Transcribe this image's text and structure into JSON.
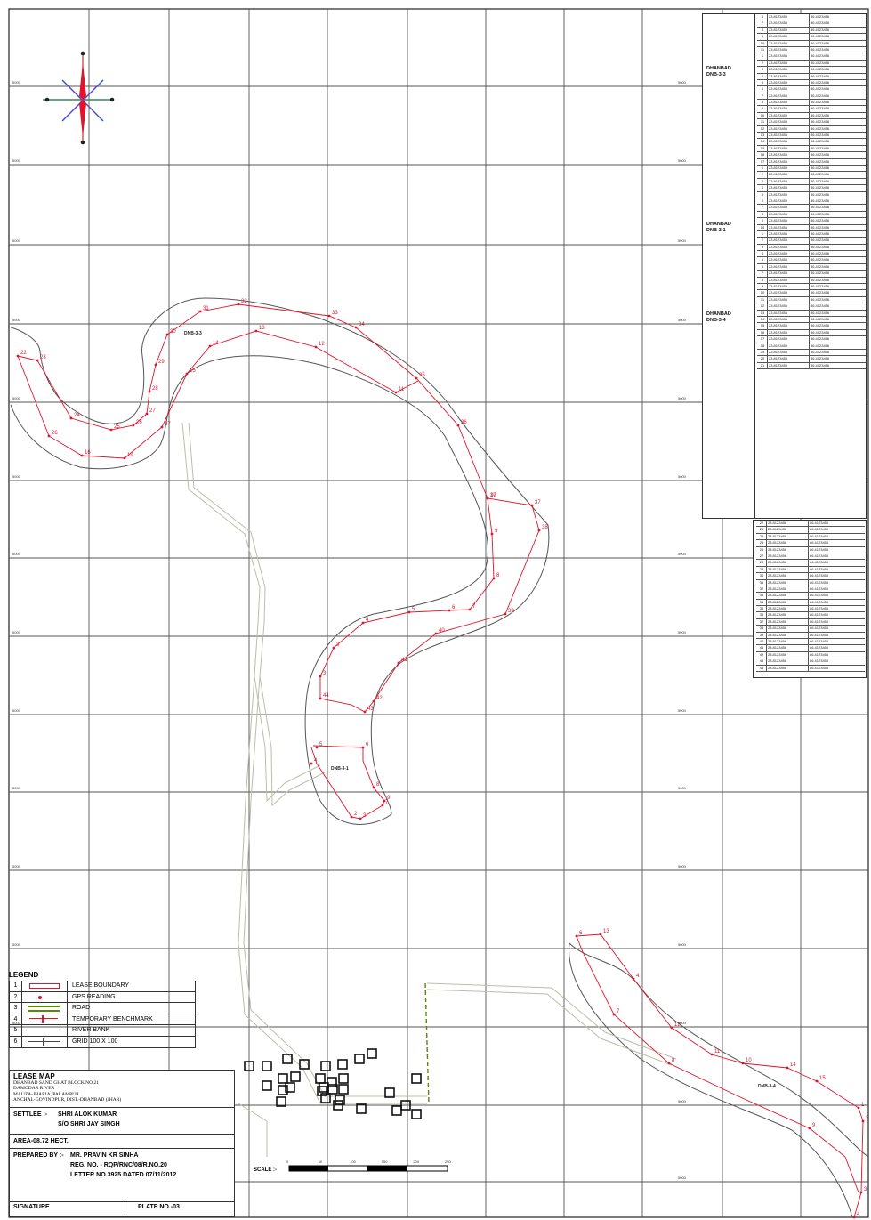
{
  "legend": {
    "title": "LEGEND",
    "items": [
      {
        "num": "1",
        "label": "LEASE BOUNDARY",
        "icon": "red-rectangle-symbol"
      },
      {
        "num": "2",
        "label": "GPS READING",
        "icon": "gps-point-symbol"
      },
      {
        "num": "3",
        "label": "ROAD",
        "icon": "green-double-line-symbol"
      },
      {
        "num": "4",
        "label": "TEMPORARY BENCHMARK",
        "icon": "benchmark-symbol"
      },
      {
        "num": "5",
        "label": "RIVER BANK",
        "icon": "grey-line-symbol"
      },
      {
        "num": "6",
        "label": "GRID 100 X 100",
        "icon": "grid-cross-symbol"
      }
    ]
  },
  "title_block": {
    "title": "LEASE MAP",
    "line1": "DHANBAD SAND GHAT BLOCK NO.21",
    "line2": "DAMODAR RIVER",
    "line3": "MAUZA-JHARIA, PALAMPUR",
    "line4": "ANCHAL-GOVINDPUR, DIST.-DHANBAD (JHAR)",
    "settlee_label": "SETTLEE :-",
    "settlee_name": "SHRI ALOK KUMAR",
    "settlee_father": "S/O SHRI JAY SINGH",
    "area": "AREA-08.72 HECT.",
    "prepared_label": "PREPARED BY :-",
    "prepared_name": "MR. PRAVIN KR SINHA",
    "reg_no": "REG. NO. - RQP/RNC/08/R.NO.20",
    "letter_no": "LETTER NO.3925 DATED 07/11/2012",
    "signature": "SIGNATURE",
    "plate": "PLATE NO.-03"
  },
  "scale": {
    "label": "SCALE :-",
    "ticks": [
      "0",
      "50",
      "100",
      "150",
      "200",
      "250"
    ]
  },
  "block_labels": [
    "DNB-3-3",
    "DNB-3-1",
    "DNB-3-4"
  ],
  "tables": {
    "group_labels": [
      {
        "line1": "DHANBAD",
        "line2": "DNB-3-3"
      },
      {
        "line1": "DHANBAD",
        "line2": "DNB-3-1"
      },
      {
        "line1": "DHANBAD",
        "line2": "DNB-3-4"
      }
    ],
    "right_numbers": [
      "6",
      "7",
      "8",
      "9",
      "10",
      "11",
      "1",
      "2",
      "3",
      "4",
      "5",
      "6",
      "7",
      "8",
      "9",
      "10",
      "11",
      "12",
      "13",
      "14",
      "15",
      "16",
      "17",
      "1",
      "2",
      "3",
      "4",
      "5",
      "6",
      "7",
      "8",
      "9",
      "10",
      "1",
      "2",
      "3",
      "4",
      "5",
      "6",
      "7",
      "8",
      "9",
      "10",
      "11",
      "12",
      "13",
      "14",
      "15",
      "16",
      "17",
      "18",
      "19",
      "20",
      "21"
    ],
    "lower_numbers": [
      "22",
      "23",
      "24",
      "25",
      "26",
      "27",
      "28",
      "29",
      "30",
      "31",
      "32",
      "33",
      "34",
      "35",
      "36",
      "37",
      "38",
      "39",
      "40",
      "41",
      "42",
      "43",
      "44"
    ],
    "lat_sample": "23.8123456",
    "lon_sample": "86.4123456"
  },
  "grid_tick_label": "5000"
}
